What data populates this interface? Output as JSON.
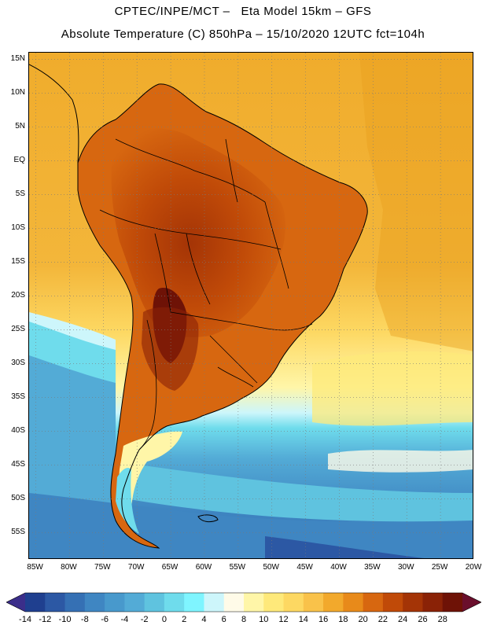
{
  "header": {
    "line1": "CPTEC/INPE/MCT –   Eta Model 15km – GFS",
    "line2": "Absolute Temperature (C) 850hPa – 15/10/2020 12UTC fct=104h"
  },
  "map": {
    "lat_labels": [
      "15N",
      "10N",
      "5N",
      "EQ",
      "5S",
      "10S",
      "15S",
      "20S",
      "25S",
      "30S",
      "35S",
      "40S",
      "45S",
      "50S",
      "55S"
    ],
    "lon_labels": [
      "85W",
      "80W",
      "75W",
      "70W",
      "65W",
      "60W",
      "55W",
      "50W",
      "45W",
      "40W",
      "35W",
      "30W",
      "25W",
      "20W"
    ],
    "lon_range": [
      -86,
      -20
    ],
    "lat_range": [
      -59,
      16
    ]
  },
  "legend": {
    "labels": [
      "-14",
      "-12",
      "-10",
      "-8",
      "-6",
      "-4",
      "-2",
      "0",
      "2",
      "4",
      "6",
      "8",
      "10",
      "12",
      "14",
      "16",
      "18",
      "20",
      "22",
      "24",
      "26",
      "28"
    ],
    "colors": [
      "#1f3f8f",
      "#2c58a4",
      "#3570b4",
      "#3f86c2",
      "#4899cc",
      "#53abd6",
      "#5fc3df",
      "#6fdcec",
      "#7ff5ff",
      "#cdf6fb",
      "#fffbe8",
      "#fff6a8",
      "#fee97a",
      "#fdd862",
      "#f9c24a",
      "#f2a92c",
      "#e88a1a",
      "#d76710",
      "#c04a08",
      "#a43406",
      "#8a2206",
      "#6e1206"
    ],
    "min_color": "#3b2e8a",
    "max_color": "#6a0f2c"
  }
}
